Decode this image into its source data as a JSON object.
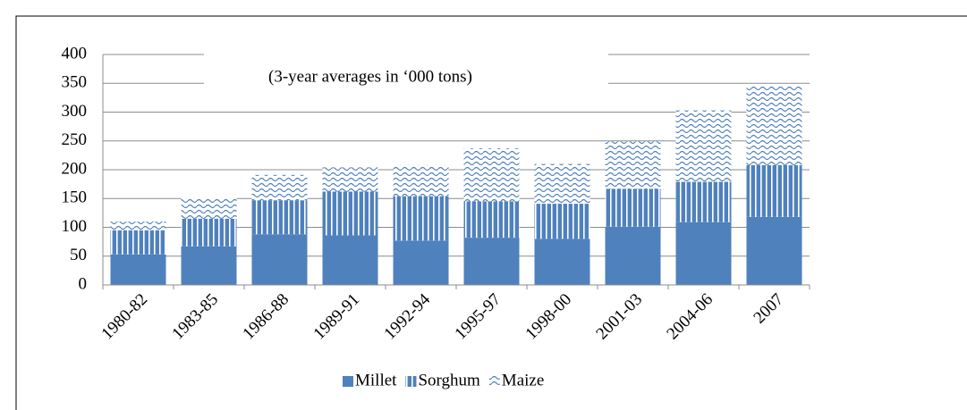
{
  "chart_data": {
    "type": "stacked_bar",
    "annotation": "(3-year averages in ‘000 tons)",
    "categories": [
      "1980-82",
      "1983-85",
      "1986-88",
      "1989-91",
      "1992-94",
      "1995-97",
      "1998-00",
      "2001-03",
      "2004-06",
      "2007"
    ],
    "series": [
      {
        "name": "Millet",
        "color": "#4f81bd",
        "pattern": "solid",
        "values": [
          53,
          67,
          88,
          86,
          77,
          82,
          80,
          101,
          109,
          118
        ]
      },
      {
        "name": "Sorghum",
        "color": "#4f81bd",
        "pattern": "vertical",
        "values": [
          42,
          48,
          59,
          76,
          77,
          63,
          61,
          66,
          70,
          90
        ]
      },
      {
        "name": "Maize",
        "color": "#4f81bd",
        "pattern": "wave",
        "values": [
          15,
          37,
          44,
          42,
          54,
          92,
          69,
          82,
          124,
          139
        ]
      }
    ],
    "ylim": [
      0,
      400
    ],
    "yticks": [
      0,
      50,
      100,
      150,
      200,
      250,
      300,
      350,
      400
    ],
    "grid": true,
    "legend": "bottom"
  }
}
